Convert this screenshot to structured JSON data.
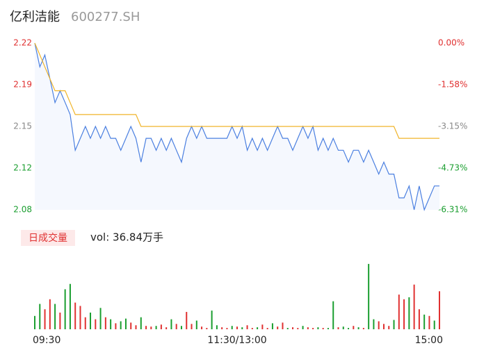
{
  "chart_data": [
    {
      "type": "line",
      "title": "亿利洁能",
      "subtitle": "600277.SH",
      "x": [
        0,
        3,
        6,
        9,
        12,
        15,
        18,
        21,
        24,
        27,
        30,
        33,
        36,
        39,
        42,
        45,
        48,
        51,
        54,
        57,
        60,
        63,
        66,
        69,
        72,
        75,
        78,
        81,
        84,
        87,
        90,
        93,
        96,
        99,
        102,
        105,
        108,
        111,
        114,
        117,
        120,
        123,
        126,
        129,
        132,
        135,
        138,
        141,
        144,
        147,
        150,
        153,
        156,
        159,
        162,
        165,
        168,
        171,
        174,
        177,
        180,
        183,
        186,
        189,
        192,
        195,
        198,
        201,
        204,
        207,
        210,
        213,
        216,
        219,
        222,
        225,
        228,
        231,
        234,
        237,
        240
      ],
      "xlim": [
        0,
        240
      ],
      "series": [
        {
          "name": "price",
          "color": "#4a7fe0",
          "values": [
            2.22,
            2.2,
            2.21,
            2.19,
            2.17,
            2.18,
            2.17,
            2.16,
            2.13,
            2.14,
            2.15,
            2.14,
            2.15,
            2.14,
            2.15,
            2.14,
            2.14,
            2.13,
            2.14,
            2.15,
            2.14,
            2.12,
            2.14,
            2.14,
            2.13,
            2.14,
            2.13,
            2.14,
            2.13,
            2.12,
            2.14,
            2.15,
            2.14,
            2.15,
            2.14,
            2.14,
            2.14,
            2.14,
            2.14,
            2.15,
            2.14,
            2.15,
            2.13,
            2.14,
            2.13,
            2.14,
            2.13,
            2.14,
            2.15,
            2.14,
            2.14,
            2.13,
            2.14,
            2.15,
            2.14,
            2.15,
            2.13,
            2.14,
            2.13,
            2.14,
            2.13,
            2.13,
            2.12,
            2.13,
            2.13,
            2.12,
            2.13,
            2.12,
            2.11,
            2.12,
            2.11,
            2.11,
            2.09,
            2.09,
            2.1,
            2.08,
            2.1,
            2.08,
            2.09,
            2.1,
            2.1
          ]
        },
        {
          "name": "average",
          "color": "#f0b429",
          "values": [
            2.22,
            2.21,
            2.2,
            2.19,
            2.18,
            2.18,
            2.18,
            2.17,
            2.16,
            2.16,
            2.16,
            2.16,
            2.16,
            2.16,
            2.16,
            2.16,
            2.16,
            2.16,
            2.16,
            2.16,
            2.16,
            2.15,
            2.15,
            2.15,
            2.15,
            2.15,
            2.15,
            2.15,
            2.15,
            2.15,
            2.15,
            2.15,
            2.15,
            2.15,
            2.15,
            2.15,
            2.15,
            2.15,
            2.15,
            2.15,
            2.15,
            2.15,
            2.15,
            2.15,
            2.15,
            2.15,
            2.15,
            2.15,
            2.15,
            2.15,
            2.15,
            2.15,
            2.15,
            2.15,
            2.15,
            2.15,
            2.15,
            2.15,
            2.15,
            2.15,
            2.15,
            2.15,
            2.15,
            2.15,
            2.15,
            2.15,
            2.15,
            2.15,
            2.15,
            2.15,
            2.15,
            2.15,
            2.14,
            2.14,
            2.14,
            2.14,
            2.14,
            2.14,
            2.14,
            2.14,
            2.14
          ]
        }
      ],
      "ylim": [
        2.08,
        2.22
      ],
      "yticks": [
        {
          "value": 2.22,
          "label": "2.22"
        },
        {
          "value": 2.185,
          "label": "2.19"
        },
        {
          "value": 2.15,
          "label": "2.15"
        },
        {
          "value": 2.115,
          "label": "2.12"
        },
        {
          "value": 2.08,
          "label": "2.08"
        }
      ],
      "ytick_colors": [
        "#e03030",
        "#e03030",
        "#888888",
        "#1a9e2f",
        "#1a9e2f"
      ],
      "y2lim": [
        -6.31,
        0
      ],
      "y2ticks": [
        {
          "value": 0,
          "label": "0.00%"
        },
        {
          "value": -1.58,
          "label": "-1.58%"
        },
        {
          "value": -3.15,
          "label": "-3.15%"
        },
        {
          "value": -4.73,
          "label": "-4.73%"
        },
        {
          "value": -6.31,
          "label": "-6.31%"
        }
      ],
      "y2tick_colors": [
        "#e03030",
        "#e03030",
        "#888888",
        "#1a9e2f",
        "#1a9e2f"
      ]
    },
    {
      "type": "bar",
      "title": "日成交量",
      "annotation": "vol: 36.84万手",
      "x": [
        0,
        3,
        6,
        9,
        12,
        15,
        18,
        21,
        24,
        27,
        30,
        33,
        36,
        39,
        42,
        45,
        48,
        51,
        54,
        57,
        60,
        63,
        66,
        69,
        72,
        75,
        78,
        81,
        84,
        87,
        90,
        93,
        96,
        99,
        102,
        105,
        108,
        111,
        114,
        117,
        120,
        123,
        126,
        129,
        132,
        135,
        138,
        141,
        144,
        147,
        150,
        153,
        156,
        159,
        162,
        165,
        168,
        171,
        174,
        177,
        180,
        183,
        186,
        189,
        192,
        195,
        198,
        201,
        204,
        207,
        210,
        213,
        216,
        219,
        222,
        225,
        228,
        231,
        234,
        237,
        240
      ],
      "xlim": [
        0,
        240
      ],
      "xticks": [
        {
          "value": 0,
          "label": "09:30"
        },
        {
          "value": 120,
          "label": "11:30/13:00"
        },
        {
          "value": 240,
          "label": "15:00"
        }
      ],
      "ylim": [
        0,
        10000
      ],
      "values": [
        2000,
        3800,
        3000,
        4500,
        3800,
        2500,
        6000,
        6800,
        4000,
        3500,
        1800,
        2500,
        1500,
        3200,
        1800,
        1500,
        900,
        1200,
        1600,
        1000,
        600,
        1800,
        500,
        400,
        500,
        700,
        300,
        1500,
        800,
        500,
        2600,
        800,
        1300,
        400,
        200,
        2800,
        600,
        300,
        200,
        500,
        400,
        300,
        600,
        200,
        300,
        700,
        200,
        900,
        400,
        1000,
        200,
        300,
        200,
        500,
        300,
        200,
        300,
        200,
        200,
        4200,
        300,
        400,
        200,
        500,
        300,
        200,
        9800,
        1500,
        1200,
        800,
        500,
        1400,
        5200,
        4500,
        4800,
        6700,
        3000,
        2200,
        2000,
        1300,
        5700
      ],
      "colors": [
        "#1a9e2f",
        "#1a9e2f",
        "#e03030",
        "#e03030",
        "#1a9e2f",
        "#e03030",
        "#1a9e2f",
        "#1a9e2f",
        "#e03030",
        "#e03030",
        "#e03030",
        "#1a9e2f",
        "#e03030",
        "#1a9e2f",
        "#e03030",
        "#1a9e2f",
        "#e03030",
        "#1a9e2f",
        "#1a9e2f",
        "#e03030",
        "#e03030",
        "#1a9e2f",
        "#e03030",
        "#e03030",
        "#1a9e2f",
        "#e03030",
        "#e03030",
        "#1a9e2f",
        "#e03030",
        "#1a9e2f",
        "#e03030",
        "#e03030",
        "#1a9e2f",
        "#e03030",
        "#e03030",
        "#1a9e2f",
        "#1a9e2f",
        "#e03030",
        "#e03030",
        "#1a9e2f",
        "#e03030",
        "#1a9e2f",
        "#e03030",
        "#e03030",
        "#1a9e2f",
        "#e03030",
        "#e03030",
        "#1a9e2f",
        "#e03030",
        "#e03030",
        "#1a9e2f",
        "#e03030",
        "#e03030",
        "#1a9e2f",
        "#e03030",
        "#e03030",
        "#1a9e2f",
        "#e03030",
        "#1a9e2f",
        "#1a9e2f",
        "#e03030",
        "#1a9e2f",
        "#1a9e2f",
        "#e03030",
        "#1a9e2f",
        "#e03030",
        "#1a9e2f",
        "#1a9e2f",
        "#e03030",
        "#e03030",
        "#e03030",
        "#1a9e2f",
        "#e03030",
        "#e03030",
        "#1a9e2f",
        "#e03030",
        "#e03030",
        "#1a9e2f",
        "#e03030",
        "#1a9e2f",
        "#e03030"
      ]
    }
  ]
}
